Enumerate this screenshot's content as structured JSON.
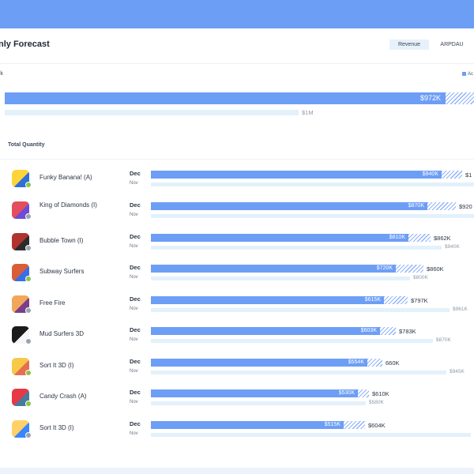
{
  "header": {
    "title": "nly Forecast",
    "tabs": [
      {
        "label": "Revenue",
        "active": true
      },
      {
        "label": "ARPDAU",
        "active": false
      }
    ]
  },
  "total": {
    "label": "rk",
    "legend_label": "Ac",
    "actual_label": "$972K",
    "forecast_label": "$1M",
    "actual_fraction": 0.69,
    "hatch_fraction": 0.078,
    "forecast_fraction": 0.669
  },
  "section": {
    "title": "Total Quantity"
  },
  "apps": [
    {
      "name": "Funky Banana!  (A)",
      "icon": "banana-game-icon",
      "platform": "android",
      "dec": "Dec",
      "nov": "Nov",
      "actual_label": "$940K",
      "total_label": "$1",
      "nov_label": ""
    },
    {
      "name": "King of Diamonds (I)",
      "icon": "diamonds-game-icon",
      "platform": "ios",
      "dec": "Dec",
      "nov": "Nov",
      "actual_label": "$870K",
      "total_label": "$920",
      "nov_label": ""
    },
    {
      "name": "Bubble Town (I)",
      "icon": "bubble-game-icon",
      "platform": "ios",
      "dec": "Dec",
      "nov": "Nov",
      "actual_label": "$810K",
      "total_label": "$862K",
      "nov_label": "$940K"
    },
    {
      "name": "Subway Surfers",
      "icon": "runner-game-icon",
      "platform": "android",
      "dec": "Dec",
      "nov": "Nov",
      "actual_label": "$720K",
      "total_label": "$860K",
      "nov_label": "$800K"
    },
    {
      "name": "Free Fire",
      "icon": "shooter-game-icon",
      "platform": "ios",
      "dec": "Dec",
      "nov": "Nov",
      "actual_label": "$615K",
      "total_label": "$797K",
      "nov_label": "$961K"
    },
    {
      "name": "Mud Surfers 3D",
      "icon": "mud-game-icon",
      "platform": "ios",
      "dec": "Dec",
      "nov": "Nov",
      "actual_label": "$603K",
      "total_label": "$783K",
      "nov_label": "$870K"
    },
    {
      "name": "Sort It 3D (I)",
      "icon": "sort-game-icon",
      "platform": "android",
      "dec": "Dec",
      "nov": "Nov",
      "actual_label": "$554K",
      "total_label": "660K",
      "nov_label": "$945K"
    },
    {
      "name": "Candy Crash (A)",
      "icon": "candy-game-icon",
      "platform": "android",
      "dec": "Dec",
      "nov": "Nov",
      "actual_label": "$530K",
      "total_label": "$610K",
      "nov_label": "$580K"
    },
    {
      "name": "Sort It 3D (I)",
      "icon": "sort-game-icon",
      "platform": "ios",
      "dec": "Dec",
      "nov": "Nov",
      "actual_label": "$515K",
      "total_label": "$604K",
      "nov_label": ""
    }
  ],
  "colors": {
    "accent": "#6d9ef6",
    "forecast": "#e3f1fb",
    "tab_active": "#e6f1fb"
  }
}
